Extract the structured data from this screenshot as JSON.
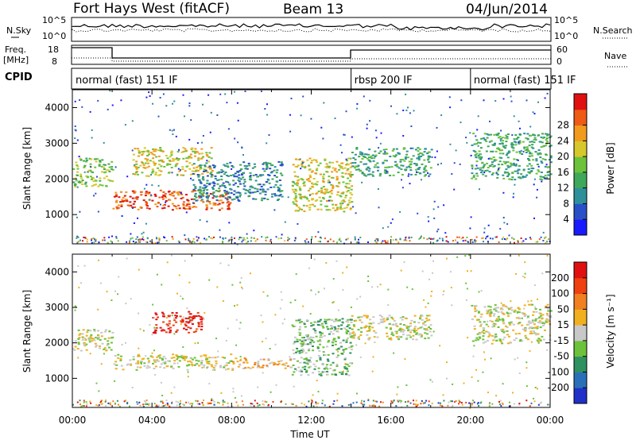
{
  "header": {
    "title": "Fort Hays West (fitACF)",
    "beam": "Beam 13",
    "date": "04/Jun/2014"
  },
  "strips": {
    "nsky_label": "N.Sky",
    "nsearch_label": "N.Search",
    "nsky_ticks": [
      "10^5",
      "10^0"
    ],
    "nsearch_ticks": [
      "10^5",
      "10^0"
    ],
    "freq_label_top": "Freq.",
    "freq_label_bottom": "[MHz]",
    "freq_ticks": [
      "18",
      "8"
    ],
    "nave_label": "Nave",
    "nave_ticks": [
      "60",
      "0"
    ],
    "cpid_label": "CPID",
    "cpid_segments": [
      {
        "label": "normal (fast) 151 IF",
        "start_h": 0,
        "end_h": 14
      },
      {
        "label": "rbsp 200 IF",
        "start_h": 14,
        "end_h": 20
      },
      {
        "label": "normal (fast) 151 IF",
        "start_h": 20,
        "end_h": 24
      }
    ]
  },
  "chart_data": [
    {
      "type": "heatmap",
      "name": "Power",
      "xlabel": "",
      "ylabel": "Slant Range [km]",
      "xlim": [
        0,
        24
      ],
      "ylim": [
        180,
        4500
      ],
      "yticks": [
        1000,
        2000,
        3000,
        4000
      ],
      "colorbar_label": "Power [dB]",
      "colorbar_ticks": [
        "4",
        "8",
        "12",
        "16",
        "20",
        "24",
        "28"
      ],
      "colorbar_colors": [
        "#1a1aff",
        "#2a50c8",
        "#2f8f9a",
        "#3fa85a",
        "#6cc23a",
        "#d6c82a",
        "#f29a1c",
        "#ef5a14",
        "#e01010"
      ],
      "echo_regions": [
        {
          "x0": 0.0,
          "x1": 2.0,
          "y0": 1800,
          "y1": 2600,
          "level": 4
        },
        {
          "x0": 2.0,
          "x1": 8.0,
          "y0": 1150,
          "y1": 1700,
          "level": 7
        },
        {
          "x0": 3.0,
          "x1": 7.0,
          "y0": 2100,
          "y1": 2900,
          "level": 5
        },
        {
          "x0": 6.0,
          "x1": 10.5,
          "y0": 1400,
          "y1": 2500,
          "level": 2
        },
        {
          "x0": 11.0,
          "x1": 14.0,
          "y0": 1100,
          "y1": 2600,
          "level": 5
        },
        {
          "x0": 14.0,
          "x1": 18.0,
          "y0": 2100,
          "y1": 2900,
          "level": 3
        },
        {
          "x0": 20.0,
          "x1": 24.0,
          "y0": 2000,
          "y1": 3300,
          "level": 3
        }
      ]
    },
    {
      "type": "heatmap",
      "name": "Velocity",
      "xlabel": "Time UT",
      "ylabel": "Slant Range [km]",
      "xlim": [
        0,
        24
      ],
      "ylim": [
        180,
        4500
      ],
      "xticks": [
        "00:00",
        "04:00",
        "08:00",
        "12:00",
        "16:00",
        "20:00",
        "00:00"
      ],
      "yticks": [
        1000,
        2000,
        3000,
        4000
      ],
      "colorbar_label": "Velocity [m s⁻¹]",
      "colorbar_ticks": [
        "200",
        "100",
        "50",
        "15",
        "-15",
        "-50",
        "-100",
        "-200"
      ],
      "colorbar_colors": [
        "#2030c8",
        "#2a70b8",
        "#2f9060",
        "#6cc23a",
        "#c8c8c8",
        "#f0b020",
        "#f08020",
        "#ef4010",
        "#e01010"
      ],
      "echo_regions": [
        {
          "x0": 0.0,
          "x1": 2.0,
          "y0": 1800,
          "y1": 2400,
          "level": 4
        },
        {
          "x0": 2.0,
          "x1": 8.0,
          "y0": 1250,
          "y1": 1700,
          "level": 4
        },
        {
          "x0": 4.0,
          "x1": 6.5,
          "y0": 2300,
          "y1": 2900,
          "level": 8
        },
        {
          "x0": 8.0,
          "x1": 11.0,
          "y0": 1300,
          "y1": 1600,
          "level": 5
        },
        {
          "x0": 11.0,
          "x1": 14.0,
          "y0": 1100,
          "y1": 2700,
          "level": 3
        },
        {
          "x0": 14.0,
          "x1": 18.0,
          "y0": 2100,
          "y1": 2800,
          "level": 4
        },
        {
          "x0": 20.0,
          "x1": 24.0,
          "y0": 2000,
          "y1": 3100,
          "level": 4
        }
      ]
    }
  ]
}
